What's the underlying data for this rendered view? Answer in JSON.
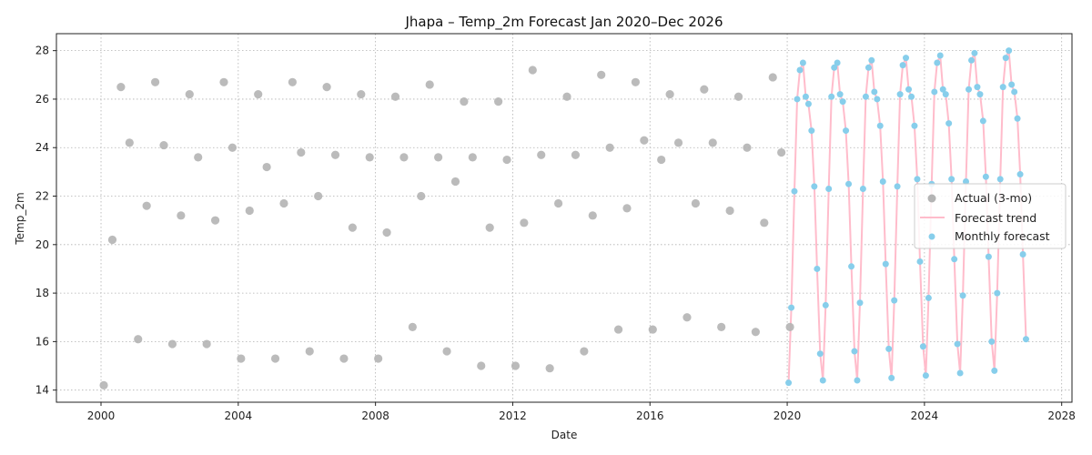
{
  "chart_data": {
    "type": "scatter",
    "title": "Jhapa – Temp_2m Forecast Jan 2020–Dec 2026",
    "xlabel": "Date",
    "ylabel": "Temp_2m",
    "xlim": [
      1998.7,
      2028.3
    ],
    "ylim": [
      13.5,
      28.7
    ],
    "x_ticks": [
      2000,
      2004,
      2008,
      2012,
      2016,
      2020,
      2024,
      2028
    ],
    "y_ticks": [
      14,
      16,
      18,
      20,
      22,
      24,
      26,
      28
    ],
    "grid": true,
    "legend": "right",
    "colors": {
      "actual": "#b4b4b4",
      "trend": "#ffbccb",
      "forecast": "#87ceeb"
    },
    "series": [
      {
        "name": "Actual (3-mo)",
        "kind": "scatter",
        "x": [
          2000.08,
          2000.33,
          2000.58,
          2000.83,
          2001.08,
          2001.33,
          2001.58,
          2001.83,
          2002.08,
          2002.33,
          2002.58,
          2002.83,
          2003.08,
          2003.33,
          2003.58,
          2003.83,
          2004.08,
          2004.33,
          2004.58,
          2004.83,
          2005.08,
          2005.33,
          2005.58,
          2005.83,
          2006.08,
          2006.33,
          2006.58,
          2006.83,
          2007.08,
          2007.33,
          2007.58,
          2007.83,
          2008.08,
          2008.33,
          2008.58,
          2008.83,
          2009.08,
          2009.33,
          2009.58,
          2009.83,
          2010.08,
          2010.33,
          2010.58,
          2010.83,
          2011.08,
          2011.33,
          2011.58,
          2011.83,
          2012.08,
          2012.33,
          2012.58,
          2012.83,
          2013.08,
          2013.33,
          2013.58,
          2013.83,
          2014.08,
          2014.33,
          2014.58,
          2014.83,
          2015.08,
          2015.33,
          2015.58,
          2015.83,
          2016.08,
          2016.33,
          2016.58,
          2016.83,
          2017.08,
          2017.33,
          2017.58,
          2017.83,
          2018.08,
          2018.33,
          2018.58,
          2018.83,
          2019.08,
          2019.33,
          2019.58,
          2019.83,
          2020.08
        ],
        "y": [
          14.2,
          20.2,
          26.5,
          24.2,
          16.1,
          21.6,
          26.7,
          24.1,
          15.9,
          21.2,
          26.2,
          23.6,
          15.9,
          21.0,
          26.7,
          24.0,
          15.3,
          21.4,
          26.2,
          23.2,
          15.3,
          21.7,
          26.7,
          23.8,
          15.6,
          22.0,
          26.5,
          23.7,
          15.3,
          20.7,
          26.2,
          23.6,
          15.3,
          20.5,
          26.1,
          23.6,
          16.6,
          22.0,
          26.6,
          23.6,
          15.6,
          22.6,
          25.9,
          23.6,
          15.0,
          20.7,
          25.9,
          23.5,
          15.0,
          20.9,
          27.2,
          23.7,
          14.9,
          21.7,
          26.1,
          23.7,
          15.6,
          21.2,
          27.0,
          24.0,
          16.5,
          21.5,
          26.7,
          24.3,
          16.5,
          23.5,
          26.2,
          24.2,
          17.0,
          21.7,
          26.4,
          24.2,
          16.6,
          21.4,
          26.1,
          24.0,
          16.4,
          20.9,
          26.9,
          23.8,
          16.6
        ]
      },
      {
        "name": "Forecast trend",
        "kind": "line",
        "x": [
          2020.04,
          2020.12,
          2020.21,
          2020.29,
          2020.37,
          2020.46,
          2020.54,
          2020.62,
          2020.71,
          2020.79,
          2020.87,
          2020.96,
          2021.04,
          2021.12,
          2021.21,
          2021.29,
          2021.37,
          2021.46,
          2021.54,
          2021.62,
          2021.71,
          2021.79,
          2021.87,
          2021.96,
          2022.04,
          2022.12,
          2022.21,
          2022.29,
          2022.37,
          2022.46,
          2022.54,
          2022.62,
          2022.71,
          2022.79,
          2022.87,
          2022.96,
          2023.04,
          2023.12,
          2023.21,
          2023.29,
          2023.37,
          2023.46,
          2023.54,
          2023.62,
          2023.71,
          2023.79,
          2023.87,
          2023.96,
          2024.04,
          2024.12,
          2024.21,
          2024.29,
          2024.37,
          2024.46,
          2024.54,
          2024.62,
          2024.71,
          2024.79,
          2024.87,
          2024.96,
          2025.04,
          2025.12,
          2025.21,
          2025.29,
          2025.37,
          2025.46,
          2025.54,
          2025.62,
          2025.71,
          2025.79,
          2025.87,
          2025.96,
          2026.04,
          2026.12,
          2026.21,
          2026.29,
          2026.37,
          2026.46,
          2026.54,
          2026.62,
          2026.71,
          2026.79,
          2026.87,
          2026.96
        ],
        "y": [
          14.3,
          17.4,
          22.2,
          26.0,
          27.2,
          27.5,
          26.1,
          25.8,
          24.7,
          22.4,
          19.0,
          15.5,
          14.4,
          17.5,
          22.3,
          26.1,
          27.3,
          27.5,
          26.2,
          25.9,
          24.7,
          22.5,
          19.1,
          15.6,
          14.4,
          17.6,
          22.3,
          26.1,
          27.3,
          27.6,
          26.3,
          26.0,
          24.9,
          22.6,
          19.2,
          15.7,
          14.5,
          17.7,
          22.4,
          26.2,
          27.4,
          27.7,
          26.4,
          26.1,
          24.9,
          22.7,
          19.3,
          15.8,
          14.6,
          17.8,
          22.5,
          26.3,
          27.5,
          27.8,
          26.4,
          26.2,
          25.0,
          22.7,
          19.4,
          15.9,
          14.7,
          17.9,
          22.6,
          26.4,
          27.6,
          27.9,
          26.5,
          26.2,
          25.1,
          22.8,
          19.5,
          16.0,
          14.8,
          18.0,
          22.7,
          26.5,
          27.7,
          28.0,
          26.6,
          26.3,
          25.2,
          22.9,
          19.6,
          16.1
        ]
      },
      {
        "name": "Monthly forecast",
        "kind": "scatter",
        "x": [
          2020.04,
          2020.12,
          2020.21,
          2020.29,
          2020.37,
          2020.46,
          2020.54,
          2020.62,
          2020.71,
          2020.79,
          2020.87,
          2020.96,
          2021.04,
          2021.12,
          2021.21,
          2021.29,
          2021.37,
          2021.46,
          2021.54,
          2021.62,
          2021.71,
          2021.79,
          2021.87,
          2021.96,
          2022.04,
          2022.12,
          2022.21,
          2022.29,
          2022.37,
          2022.46,
          2022.54,
          2022.62,
          2022.71,
          2022.79,
          2022.87,
          2022.96,
          2023.04,
          2023.12,
          2023.21,
          2023.29,
          2023.37,
          2023.46,
          2023.54,
          2023.62,
          2023.71,
          2023.79,
          2023.87,
          2023.96,
          2024.04,
          2024.12,
          2024.21,
          2024.29,
          2024.37,
          2024.46,
          2024.54,
          2024.62,
          2024.71,
          2024.79,
          2024.87,
          2024.96,
          2025.04,
          2025.12,
          2025.21,
          2025.29,
          2025.37,
          2025.46,
          2025.54,
          2025.62,
          2025.71,
          2025.79,
          2025.87,
          2025.96,
          2026.04,
          2026.12,
          2026.21,
          2026.29,
          2026.37,
          2026.46,
          2026.54,
          2026.62,
          2026.71,
          2026.79,
          2026.87,
          2026.96
        ],
        "y": [
          14.3,
          17.4,
          22.2,
          26.0,
          27.2,
          27.5,
          26.1,
          25.8,
          24.7,
          22.4,
          19.0,
          15.5,
          14.4,
          17.5,
          22.3,
          26.1,
          27.3,
          27.5,
          26.2,
          25.9,
          24.7,
          22.5,
          19.1,
          15.6,
          14.4,
          17.6,
          22.3,
          26.1,
          27.3,
          27.6,
          26.3,
          26.0,
          24.9,
          22.6,
          19.2,
          15.7,
          14.5,
          17.7,
          22.4,
          26.2,
          27.4,
          27.7,
          26.4,
          26.1,
          24.9,
          22.7,
          19.3,
          15.8,
          14.6,
          17.8,
          22.5,
          26.3,
          27.5,
          27.8,
          26.4,
          26.2,
          25.0,
          22.7,
          19.4,
          15.9,
          14.7,
          17.9,
          22.6,
          26.4,
          27.6,
          27.9,
          26.5,
          26.2,
          25.1,
          22.8,
          19.5,
          16.0,
          14.8,
          18.0,
          22.7,
          26.5,
          27.7,
          28.0,
          26.6,
          26.3,
          25.2,
          22.9,
          19.6,
          16.1
        ]
      }
    ]
  }
}
